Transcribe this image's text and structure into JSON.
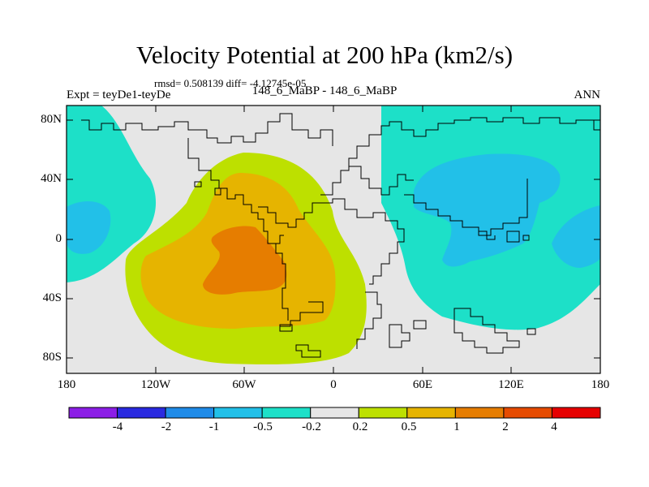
{
  "title": "Velocity Potential at 200 hPa (km2/s)",
  "stats": "rmsd= 0.508139 diff= -4.12745e-05",
  "expt_label": "Expt = teyDe1-teyDe",
  "cases_label": "148_6_MaBP - 148_6_MaBP",
  "season": "ANN",
  "lat_labels": [
    "80N",
    "40N",
    "0",
    "40S",
    "80S"
  ],
  "lon_labels": [
    "180",
    "120W",
    "60W",
    "0",
    "60E",
    "120E",
    "180"
  ],
  "colorbar": {
    "colors": [
      "#8c1ee6",
      "#2a2ae0",
      "#1f8be8",
      "#22c0e8",
      "#1de0c8",
      "#e6e6e6",
      "#bde000",
      "#e6b400",
      "#e67d00",
      "#e64b00",
      "#e60000"
    ],
    "labels": [
      "-4",
      "-2",
      "-1",
      "-0.5",
      "-0.2",
      "0.2",
      "0.5",
      "1",
      "2",
      "4"
    ]
  },
  "legend_levels": {
    "background": "#e6e6e6",
    "neg_02": "#1de0c8",
    "neg_05": "#22c0e8",
    "pos_02": "#bde000",
    "pos_05": "#e6b400",
    "pos_1": "#e67d00"
  }
}
